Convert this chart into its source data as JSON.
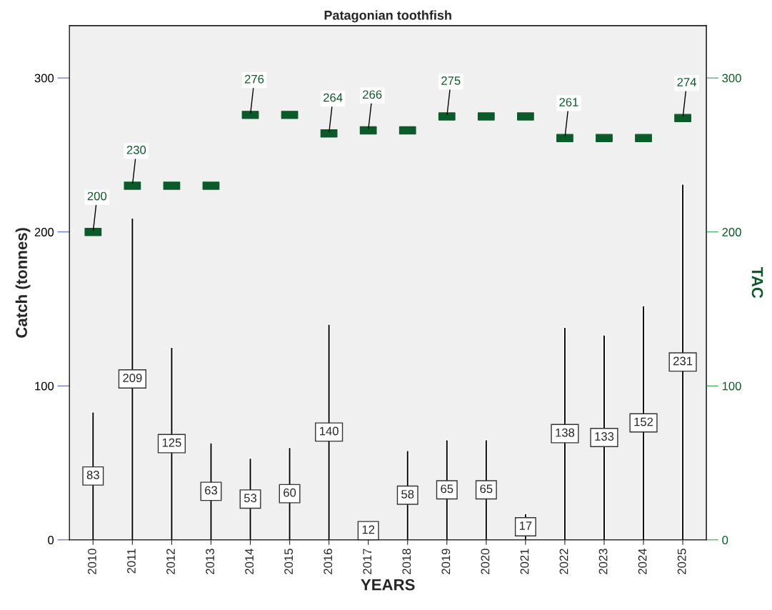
{
  "chart_data": {
    "type": "bar",
    "title": "Patagonian toothfish",
    "xlabel": "YEARS",
    "ylabel": "Catch (tonnes)",
    "y2label": "TAC",
    "categories": [
      "2010",
      "2011",
      "2012",
      "2013",
      "2014",
      "2015",
      "2016",
      "2017",
      "2018",
      "2019",
      "2020",
      "2021",
      "2022",
      "2023",
      "2024",
      "2025"
    ],
    "series": [
      {
        "color": "#000000",
        "values": [
          83,
          209,
          125,
          63,
          53,
          60,
          140,
          12,
          58,
          65,
          65,
          17,
          138,
          133,
          152,
          231
        ],
        "data_labels": true
      },
      {
        "type": "scatter",
        "axis": "y2",
        "color": "#0b5a2a",
        "marker": "square",
        "values": [
          200,
          230,
          230,
          230,
          276,
          276,
          264,
          266,
          266,
          275,
          275,
          275,
          261,
          261,
          261,
          274
        ],
        "value_labels": [
          "200",
          "230",
          null,
          null,
          "276",
          null,
          "264",
          "266",
          null,
          "275",
          null,
          null,
          "261",
          null,
          null,
          "274"
        ]
      }
    ],
    "ylim": [
      0,
      334
    ],
    "yticks": [
      0,
      100,
      200,
      300
    ],
    "y2lim": [
      0,
      334
    ],
    "y2ticks": [
      0,
      100,
      200,
      300
    ],
    "grid": false,
    "legend": false
  }
}
